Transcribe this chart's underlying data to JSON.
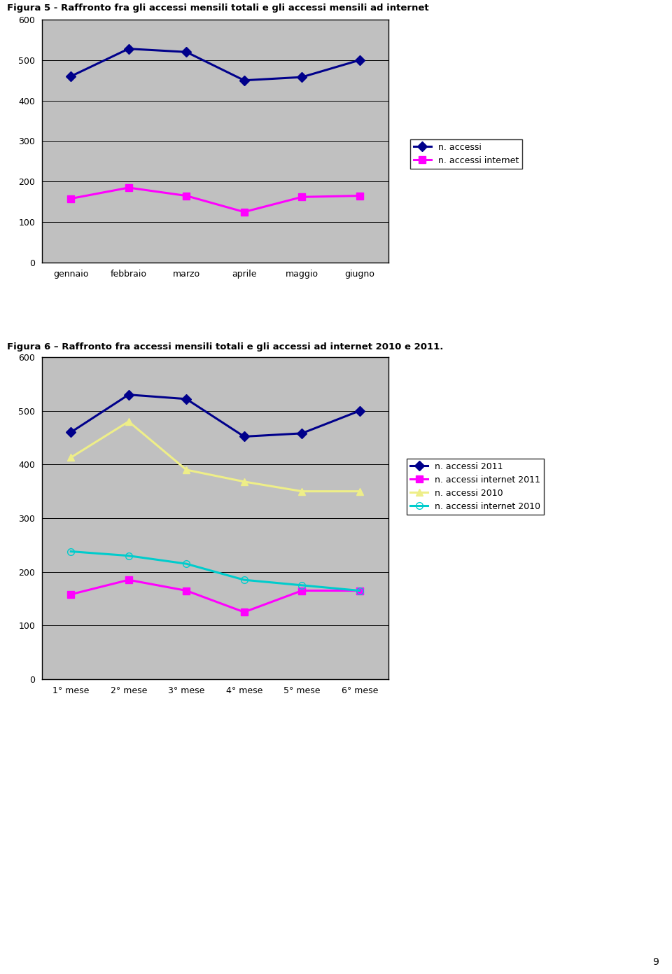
{
  "title1": "Figura 5 - Raffronto fra gli accessi mensili totali e gli accessi mensili ad internet",
  "title2": "Figura 6 – Raffronto fra accessi mensili totali e gli accessi ad internet 2010 e 2011.",
  "chart1": {
    "x_labels": [
      "gennaio",
      "febbraio",
      "marzo",
      "aprile",
      "maggio",
      "giugno"
    ],
    "series": [
      {
        "label": "n. accessi",
        "values": [
          460,
          528,
          520,
          450,
          458,
          500
        ],
        "color": "#00008B",
        "marker": "D",
        "linewidth": 2.2,
        "markersize": 7
      },
      {
        "label": "n. accessi internet",
        "values": [
          158,
          185,
          165,
          125,
          162,
          165
        ],
        "color": "#FF00FF",
        "marker": "s",
        "linewidth": 2.2,
        "markersize": 7
      }
    ],
    "ylim": [
      0,
      600
    ],
    "yticks": [
      0,
      100,
      200,
      300,
      400,
      500,
      600
    ],
    "bg_color": "#C0C0C0"
  },
  "chart2": {
    "x_labels": [
      "1° mese",
      "2° mese",
      "3° mese",
      "4° mese",
      "5° mese",
      "6° mese"
    ],
    "series": [
      {
        "label": "n. accessi 2011",
        "values": [
          460,
          530,
          522,
          452,
          458,
          500
        ],
        "color": "#00008B",
        "marker": "D",
        "linewidth": 2.2,
        "markersize": 7,
        "open_marker": false
      },
      {
        "label": "n. accessi internet 2011",
        "values": [
          158,
          185,
          165,
          125,
          165,
          165
        ],
        "color": "#FF00FF",
        "marker": "s",
        "linewidth": 2.2,
        "markersize": 7,
        "open_marker": false
      },
      {
        "label": "n. accessi 2010",
        "values": [
          413,
          480,
          390,
          368,
          350,
          350
        ],
        "color": "#EEEE88",
        "marker": "^",
        "linewidth": 2.2,
        "markersize": 7,
        "open_marker": false
      },
      {
        "label": "n. accessi internet 2010",
        "values": [
          238,
          230,
          215,
          185,
          175,
          165
        ],
        "color": "#00CCCC",
        "marker": "o",
        "linewidth": 2.2,
        "markersize": 7,
        "open_marker": true
      }
    ],
    "ylim": [
      0,
      600
    ],
    "yticks": [
      0,
      100,
      200,
      300,
      400,
      500,
      600
    ],
    "bg_color": "#C0C0C0"
  },
  "page_number": "9",
  "figure_bg": "#FFFFFF",
  "font_family": "Arial",
  "title_fontsize": 9.5,
  "tick_fontsize": 9,
  "legend_fontsize": 9
}
